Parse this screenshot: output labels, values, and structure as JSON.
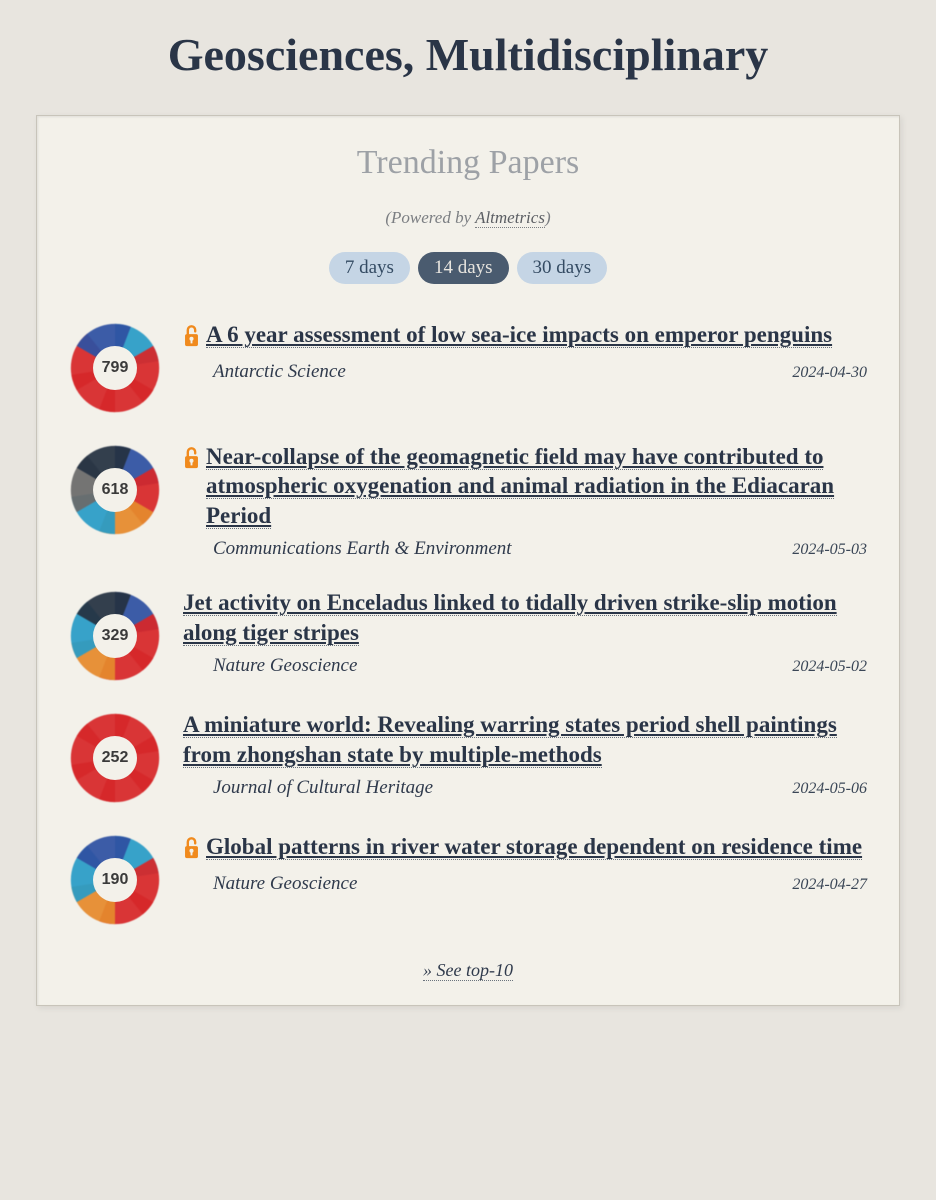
{
  "page_title": "Geosciences, Multidisciplinary",
  "section_title": "Trending Papers",
  "powered_prefix": "(Powered by ",
  "powered_link": "Altmetrics",
  "powered_suffix": ")",
  "tabs": [
    {
      "label": "7 days",
      "active": false
    },
    {
      "label": "14 days",
      "active": true
    },
    {
      "label": "30 days",
      "active": false
    }
  ],
  "colors": {
    "red": "#d7282a",
    "blue": "#3052a3",
    "cyan": "#2a9cc7",
    "orange": "#e68a2e",
    "gray": "#6b6b6b",
    "dark": "#263343"
  },
  "papers": [
    {
      "score": "799",
      "open_access": true,
      "title": "A 6 year assessment of low sea-ice impacts on emperor penguins",
      "journal": "Antarctic Science",
      "date": "2024-04-30",
      "donut_stops": [
        "#2a9cc7",
        "#d7282a",
        "#d7282a",
        "#d7282a",
        "#d7282a",
        "#3052a3"
      ]
    },
    {
      "score": "618",
      "open_access": true,
      "title": "Near-collapse of the geomagnetic field may have contributed to atmospheric oxygenation and animal radiation in the Ediacaran Period",
      "journal": "Communications Earth & Environment",
      "date": "2024-05-03",
      "donut_stops": [
        "#3052a3",
        "#d7282a",
        "#e68a2e",
        "#2a9cc7",
        "#6b6b6b",
        "#263343"
      ]
    },
    {
      "score": "329",
      "open_access": false,
      "title": "Jet activity on Enceladus linked to tidally driven strike-slip motion along tiger stripes",
      "journal": "Nature Geoscience",
      "date": "2024-05-02",
      "donut_stops": [
        "#3052a3",
        "#d7282a",
        "#d7282a",
        "#e68a2e",
        "#2a9cc7",
        "#263343"
      ]
    },
    {
      "score": "252",
      "open_access": false,
      "title": "A miniature world: Revealing warring states period shell paintings from zhongshan state by multiple-methods",
      "journal": "Journal of Cultural Heritage",
      "date": "2024-05-06",
      "donut_stops": [
        "#d7282a",
        "#d7282a",
        "#d7282a",
        "#d7282a",
        "#d7282a",
        "#d7282a"
      ]
    },
    {
      "score": "190",
      "open_access": true,
      "title": "Global patterns in river water storage dependent on residence time",
      "journal": "Nature Geoscience",
      "date": "2024-04-27",
      "donut_stops": [
        "#2a9cc7",
        "#d7282a",
        "#d7282a",
        "#e68a2e",
        "#2a9cc7",
        "#3052a3"
      ]
    }
  ],
  "see_more": "» See top-10"
}
